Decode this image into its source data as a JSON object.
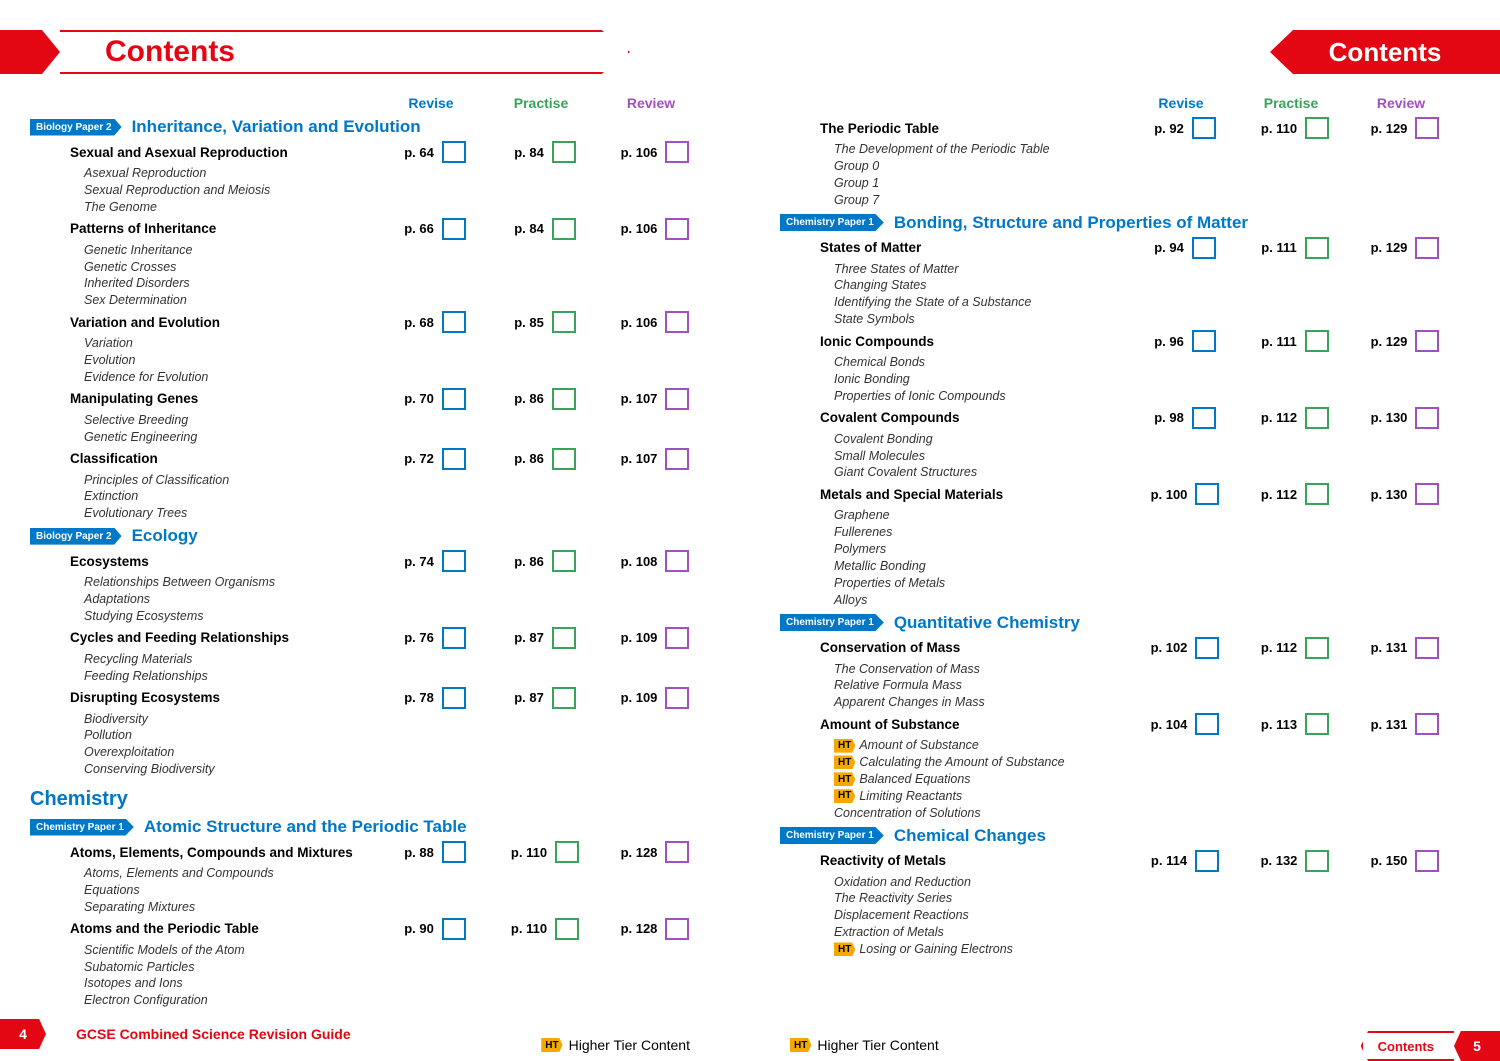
{
  "colors": {
    "brand": "#e30613",
    "revise": "#0078c8",
    "practise": "#3aa35a",
    "review": "#a050c0",
    "ht": "#f5a800"
  },
  "page_left_number": "4",
  "page_right_number": "5",
  "header_left_title": "Contents",
  "header_right_title": "Contents",
  "footer_left_text": "GCSE Combined Science Revision Guide",
  "footer_ht_text": "Higher Tier Content",
  "footer_right_contents": "Contents",
  "col_heads": {
    "revise": "Revise",
    "practise": "Practise",
    "review": "Review"
  },
  "ht_label": "HT",
  "left": {
    "sections": [
      {
        "badge": "Biology Paper 2",
        "title": "Inheritance, Variation and Evolution",
        "topics": [
          {
            "name": "Sexual and Asexual Reproduction",
            "revise": "p. 64",
            "practise": "p. 84",
            "review": "p. 106",
            "subs": [
              "Asexual Reproduction",
              "Sexual Reproduction and Meiosis",
              "The Genome"
            ]
          },
          {
            "name": "Patterns of Inheritance",
            "revise": "p. 66",
            "practise": "p. 84",
            "review": "p. 106",
            "subs": [
              "Genetic Inheritance",
              "Genetic Crosses",
              "Inherited Disorders",
              "Sex Determination"
            ]
          },
          {
            "name": "Variation and Evolution",
            "revise": "p. 68",
            "practise": "p. 85",
            "review": "p. 106",
            "subs": [
              "Variation",
              "Evolution",
              "Evidence for Evolution"
            ]
          },
          {
            "name": "Manipulating Genes",
            "revise": "p. 70",
            "practise": "p. 86",
            "review": "p. 107",
            "subs": [
              "Selective Breeding",
              "Genetic Engineering"
            ]
          },
          {
            "name": "Classification",
            "revise": "p. 72",
            "practise": "p. 86",
            "review": "p. 107",
            "subs": [
              "Principles of Classification",
              "Extinction",
              "Evolutionary Trees"
            ]
          }
        ]
      },
      {
        "badge": "Biology Paper 2",
        "title": "Ecology",
        "topics": [
          {
            "name": "Ecosystems",
            "revise": "p. 74",
            "practise": "p. 86",
            "review": "p. 108",
            "subs": [
              "Relationships Between Organisms",
              "Adaptations",
              "Studying Ecosystems"
            ]
          },
          {
            "name": "Cycles and Feeding Relationships",
            "revise": "p. 76",
            "practise": "p. 87",
            "review": "p. 109",
            "subs": [
              "Recycling Materials",
              "Feeding Relationships"
            ]
          },
          {
            "name": "Disrupting Ecosystems",
            "revise": "p. 78",
            "practise": "p. 87",
            "review": "p. 109",
            "subs": [
              "Biodiversity",
              "Pollution",
              "Overexploitation",
              "Conserving Biodiversity"
            ]
          }
        ]
      }
    ],
    "subject_head": "Chemistry",
    "sections2": [
      {
        "badge": "Chemistry Paper 1",
        "title": "Atomic Structure and the Periodic Table",
        "topics": [
          {
            "name": "Atoms, Elements, Compounds and Mixtures",
            "revise": "p. 88",
            "practise": "p. 110",
            "review": "p. 128",
            "subs": [
              "Atoms, Elements and Compounds",
              "Equations",
              "Separating Mixtures"
            ]
          },
          {
            "name": "Atoms and the Periodic Table",
            "revise": "p. 90",
            "practise": "p. 110",
            "review": "p. 128",
            "subs": [
              "Scientific Models of the Atom",
              "Subatomic Particles",
              "Isotopes and Ions",
              "Electron Configuration"
            ]
          }
        ]
      }
    ]
  },
  "right": {
    "orphan_topics": [
      {
        "name": "The Periodic Table",
        "revise": "p. 92",
        "practise": "p. 110",
        "review": "p. 129",
        "subs": [
          "The Development of the Periodic Table",
          "Group 0",
          "Group 1",
          "Group 7"
        ]
      }
    ],
    "sections": [
      {
        "badge": "Chemistry Paper 1",
        "title": "Bonding, Structure and Properties of Matter",
        "topics": [
          {
            "name": "States of Matter",
            "revise": "p. 94",
            "practise": "p. 111",
            "review": "p. 129",
            "subs": [
              "Three States of Matter",
              "Changing States",
              "Identifying the State of a Substance",
              "State Symbols"
            ]
          },
          {
            "name": "Ionic Compounds",
            "revise": "p. 96",
            "practise": "p. 111",
            "review": "p. 129",
            "subs": [
              "Chemical Bonds",
              "Ionic Bonding",
              "Properties of Ionic Compounds"
            ]
          },
          {
            "name": "Covalent Compounds",
            "revise": "p. 98",
            "practise": "p. 112",
            "review": "p. 130",
            "subs": [
              "Covalent Bonding",
              "Small Molecules",
              "Giant Covalent Structures"
            ]
          },
          {
            "name": "Metals and Special Materials",
            "revise": "p. 100",
            "practise": "p. 112",
            "review": "p. 130",
            "subs": [
              "Graphene",
              "Fullerenes",
              "Polymers",
              "Metallic Bonding",
              "Properties of Metals",
              "Alloys"
            ]
          }
        ]
      },
      {
        "badge": "Chemistry Paper 1",
        "title": "Quantitative Chemistry",
        "topics": [
          {
            "name": "Conservation of Mass",
            "revise": "p. 102",
            "practise": "p. 112",
            "review": "p. 131",
            "subs": [
              "The Conservation of Mass",
              "Relative Formula Mass",
              "Apparent Changes in Mass"
            ]
          },
          {
            "name": "Amount of Substance",
            "revise": "p. 104",
            "practise": "p. 113",
            "review": "p. 131",
            "subs": [
              {
                "ht": true,
                "t": "Amount of Substance"
              },
              {
                "ht": true,
                "t": "Calculating the Amount of Substance"
              },
              {
                "ht": true,
                "t": "Balanced Equations"
              },
              {
                "ht": true,
                "t": "Limiting Reactants"
              },
              "Concentration of Solutions"
            ]
          }
        ]
      },
      {
        "badge": "Chemistry Paper 1",
        "title": "Chemical Changes",
        "topics": [
          {
            "name": "Reactivity of Metals",
            "revise": "p. 114",
            "practise": "p. 132",
            "review": "p. 150",
            "subs": [
              "Oxidation and Reduction",
              "The Reactivity Series",
              "Displacement Reactions",
              "Extraction of Metals",
              {
                "ht": true,
                "t": "Losing or Gaining Electrons"
              }
            ]
          }
        ]
      }
    ]
  }
}
